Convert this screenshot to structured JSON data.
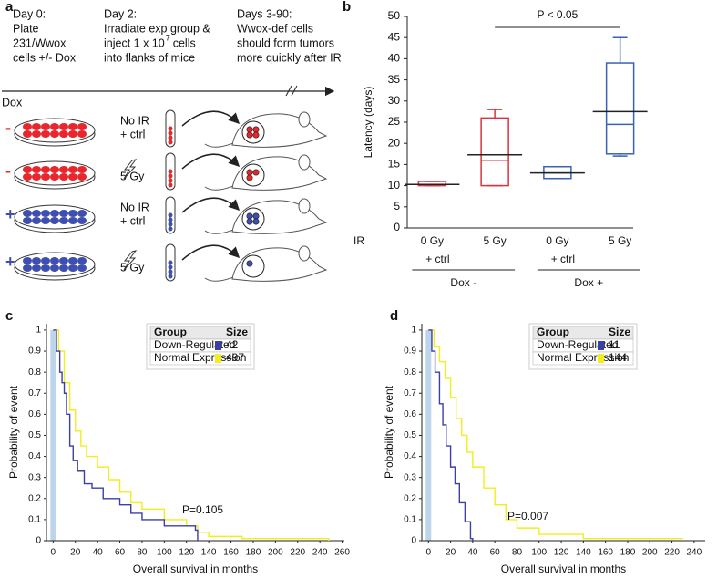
{
  "panel_a": {
    "label": "a",
    "steps": [
      {
        "lines": [
          "Day 0:",
          "Plate",
          "231/Wwox",
          "cells +/- Dox"
        ]
      },
      {
        "lines": [
          "Day 2:",
          "Irradiate exp group &",
          "inject 1 x 10",
          "into flanks of mice"
        ],
        "superscript": "7",
        "after_superscript": "cells"
      },
      {
        "lines": [
          "Days 3-90:",
          "Wwox-def cells",
          "should form tumors",
          "more quickly after IR"
        ]
      }
    ],
    "row_header": "Dox",
    "rows": [
      {
        "dox": "-",
        "treatment": [
          "No IR",
          "+ ctrl"
        ]
      },
      {
        "dox": "-",
        "treatment": [
          "5 Gy"
        ]
      },
      {
        "dox": "+",
        "treatment": [
          "No IR",
          "+ ctrl"
        ]
      },
      {
        "dox": "+",
        "treatment": [
          "5 Gy"
        ]
      }
    ]
  },
  "chart_data": [
    {
      "type": "box",
      "panel": "b",
      "ylabel": "Latency (days)",
      "x_prefix": "IR",
      "categories": [
        "0 Gy",
        "5 Gy",
        "0 Gy",
        "5 Gy"
      ],
      "boxes": [
        {
          "min": 10,
          "q1": 10,
          "median": 10.3,
          "q3": 11,
          "max": 11,
          "mean": 10.3,
          "color": "#d9343f"
        },
        {
          "min": 10,
          "q1": 10,
          "median": 16,
          "q3": 26,
          "max": 28,
          "mean": 17.3,
          "color": "#d9343f"
        },
        {
          "min": 11.7,
          "q1": 11.7,
          "median": 13,
          "q3": 14.5,
          "max": 14.5,
          "mean": 13,
          "color": "#3a62b3"
        },
        {
          "min": 17,
          "q1": 17.5,
          "median": 24.5,
          "q3": 39,
          "max": 45,
          "mean": 27.5,
          "color": "#3a62b3"
        }
      ],
      "groups": [
        {
          "treatment": "+ ctrl",
          "name": "Dox -",
          "color": "#d9343f"
        },
        {
          "treatment": "+ ctrl",
          "name": "Dox +",
          "color": "#3a62b3"
        }
      ],
      "annotation": "P < 0.05",
      "ylim": [
        0,
        50
      ],
      "yticks": [
        0,
        5,
        10,
        15,
        20,
        25,
        30,
        35,
        40,
        45,
        50
      ]
    },
    {
      "type": "km",
      "panel": "c",
      "xlabel": "Overall survival in months",
      "ylabel": "Probability of event",
      "legend_headers": [
        "Group",
        "Size"
      ],
      "series": [
        {
          "name": "Down-Regulated",
          "color": "#3b3fa8",
          "size": 42,
          "x": [
            0,
            3,
            6,
            8,
            10,
            12,
            15,
            18,
            22,
            28,
            35,
            45,
            60,
            70,
            80,
            100,
            128,
            130
          ],
          "values": [
            1,
            0.9,
            0.8,
            0.75,
            0.7,
            0.6,
            0.45,
            0.38,
            0.33,
            0.27,
            0.25,
            0.2,
            0.17,
            0.13,
            0.1,
            0.07,
            0.05,
            0
          ]
        },
        {
          "name": "Normal Expression",
          "color": "#f2ee1c",
          "size": 497,
          "x": [
            0,
            5,
            10,
            15,
            20,
            25,
            30,
            40,
            50,
            60,
            70,
            80,
            100,
            120,
            130,
            140,
            170,
            248
          ],
          "values": [
            1,
            0.9,
            0.75,
            0.62,
            0.52,
            0.45,
            0.4,
            0.35,
            0.29,
            0.23,
            0.18,
            0.15,
            0.1,
            0.07,
            0.04,
            0.02,
            0.01,
            0
          ]
        }
      ],
      "annotation": "P=0.105",
      "xlim": [
        -6,
        262
      ],
      "ylim": [
        0,
        1.03
      ],
      "xticks": [
        0,
        20,
        40,
        60,
        80,
        100,
        120,
        140,
        160,
        180,
        200,
        220,
        240,
        260
      ],
      "yticks": [
        0,
        0.1,
        0.2,
        0.3,
        0.4,
        0.5,
        0.6,
        0.7,
        0.8,
        0.9,
        1
      ]
    },
    {
      "type": "km",
      "panel": "d",
      "xlabel": "Overall survival in months",
      "ylabel": "Probability of event",
      "legend_headers": [
        "Group",
        "Size"
      ],
      "series": [
        {
          "name": "Down-Regulated",
          "color": "#3b3fa8",
          "size": 11,
          "x": [
            0,
            3,
            6,
            10,
            13,
            16,
            20,
            24,
            28,
            33,
            38,
            40
          ],
          "values": [
            1,
            0.9,
            0.8,
            0.65,
            0.55,
            0.45,
            0.35,
            0.27,
            0.18,
            0.09,
            0.01,
            0
          ]
        },
        {
          "name": "Normal Expression",
          "color": "#f2ee1c",
          "size": 144,
          "x": [
            0,
            5,
            10,
            15,
            20,
            25,
            30,
            35,
            40,
            50,
            60,
            70,
            80,
            100,
            140,
            230
          ],
          "values": [
            1,
            0.92,
            0.85,
            0.77,
            0.68,
            0.58,
            0.5,
            0.42,
            0.35,
            0.25,
            0.17,
            0.1,
            0.06,
            0.03,
            0.01,
            0.01
          ]
        }
      ],
      "annotation": "P=0.007",
      "xlim": [
        -6,
        250
      ],
      "ylim": [
        0,
        1.03
      ],
      "xticks": [
        0,
        20,
        40,
        60,
        80,
        100,
        120,
        140,
        160,
        180,
        200,
        220,
        240
      ],
      "yticks": [
        0,
        0.1,
        0.2,
        0.3,
        0.4,
        0.5,
        0.6,
        0.7,
        0.8,
        0.9,
        1
      ]
    }
  ]
}
